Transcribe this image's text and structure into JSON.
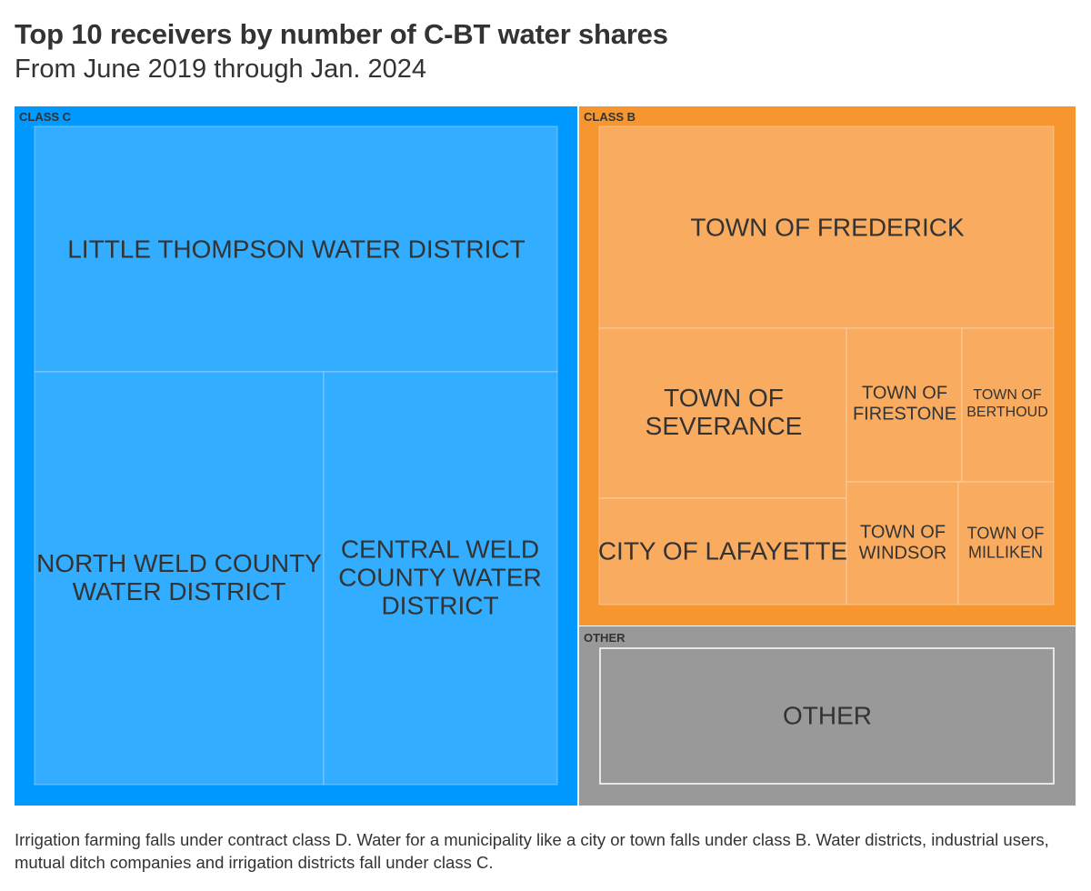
{
  "chart_data": {
    "type": "treemap",
    "title": "Top 10 receivers by number of C-BT water shares",
    "subtitle": "From June 2019 through Jan. 2024",
    "groups": [
      {
        "name": "CLASS C",
        "color": "#0099ff",
        "leaf_color": "#33adff",
        "items": [
          {
            "label": "LITTLE THOMPSON WATER DISTRICT",
            "lines": [
              "LITTLE THOMPSON WATER DISTRICT"
            ]
          },
          {
            "label": "NORTH WELD COUNTY WATER DISTRICT",
            "lines": [
              "NORTH WELD COUNTY",
              "WATER DISTRICT"
            ]
          },
          {
            "label": "CENTRAL WELD COUNTY WATER DISTRICT",
            "lines": [
              "CENTRAL WELD",
              "COUNTY WATER",
              "DISTRICT"
            ]
          }
        ]
      },
      {
        "name": "CLASS B",
        "color": "#f7962f",
        "leaf_color": "#f9ab5f",
        "items": [
          {
            "label": "TOWN OF FREDERICK",
            "lines": [
              "TOWN OF FREDERICK"
            ]
          },
          {
            "label": "TOWN OF SEVERANCE",
            "lines": [
              "TOWN OF",
              "SEVERANCE"
            ]
          },
          {
            "label": "TOWN OF FIRESTONE",
            "lines": [
              "TOWN OF",
              "FIRESTONE"
            ]
          },
          {
            "label": "TOWN OF BERTHOUD",
            "lines": [
              "TOWN OF",
              "BERTHOUD"
            ]
          },
          {
            "label": "CITY OF LAFAYETTE",
            "lines": [
              "CITY OF LAFAYETTE"
            ]
          },
          {
            "label": "TOWN OF WINDSOR",
            "lines": [
              "TOWN OF",
              "WINDSOR"
            ]
          },
          {
            "label": "TOWN OF MILLIKEN",
            "lines": [
              "TOWN OF",
              "MILLIKEN"
            ]
          }
        ]
      },
      {
        "name": "OTHER",
        "color": "#999999",
        "leaf_color": "#999999",
        "items": [
          {
            "label": "OTHER",
            "lines": [
              "OTHER"
            ]
          }
        ]
      }
    ]
  },
  "footnote": "Irrigation farming falls under contract class D. Water for a municipality like a city or town falls under class B. Water districts, industrial users, mutual ditch companies and irrigation districts fall under class C."
}
